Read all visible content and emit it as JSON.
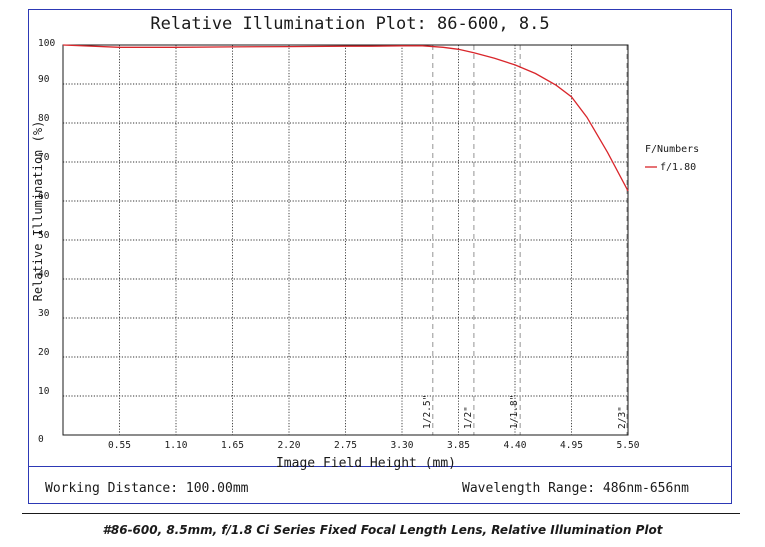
{
  "chart_data": {
    "type": "line",
    "title": "Relative Illumination Plot: 86-600, 8.5",
    "xlabel": "Image Field Height (mm)",
    "ylabel": "Relative Illumination (%)",
    "xlim": [
      0,
      5.5
    ],
    "ylim": [
      0,
      100
    ],
    "x_ticks": [
      "0.55",
      "1.10",
      "1.65",
      "2.20",
      "2.75",
      "3.30",
      "3.85",
      "4.40",
      "4.95",
      "5.50"
    ],
    "y_ticks": [
      "0",
      "10",
      "20",
      "30",
      "40",
      "50",
      "60",
      "70",
      "80",
      "90",
      "100"
    ],
    "grid": true,
    "legend_title": "F/Numbers",
    "legend_position": "right",
    "series": [
      {
        "name": "f/1.80",
        "color": "#d9262b",
        "x": [
          0,
          0.55,
          1.1,
          1.65,
          2.2,
          2.75,
          3.0,
          3.3,
          3.5,
          3.7,
          3.85,
          4.0,
          4.2,
          4.4,
          4.6,
          4.8,
          4.95,
          5.1,
          5.3,
          5.5
        ],
        "y": [
          100,
          99.4,
          99.4,
          99.5,
          99.6,
          99.7,
          99.7,
          99.8,
          99.8,
          99.4,
          98.9,
          98.0,
          96.6,
          94.9,
          92.7,
          89.7,
          86.7,
          81.5,
          72.5,
          62.6
        ]
      }
    ],
    "annotations": [
      {
        "label": "1/2.5\"",
        "x": 3.6
      },
      {
        "label": "1/2\"",
        "x": 4.0
      },
      {
        "label": "1/1.8\"",
        "x": 4.45
      },
      {
        "label": "2/3\"",
        "x": 5.5
      }
    ]
  },
  "footer": {
    "working_distance": "Working Distance: 100.00mm",
    "wavelength_range": "Wavelength Range: 486nm-656nm"
  },
  "caption": "#86-600, 8.5mm, f/1.8 Ci Series Fixed Focal Length Lens, Relative Illumination Plot"
}
